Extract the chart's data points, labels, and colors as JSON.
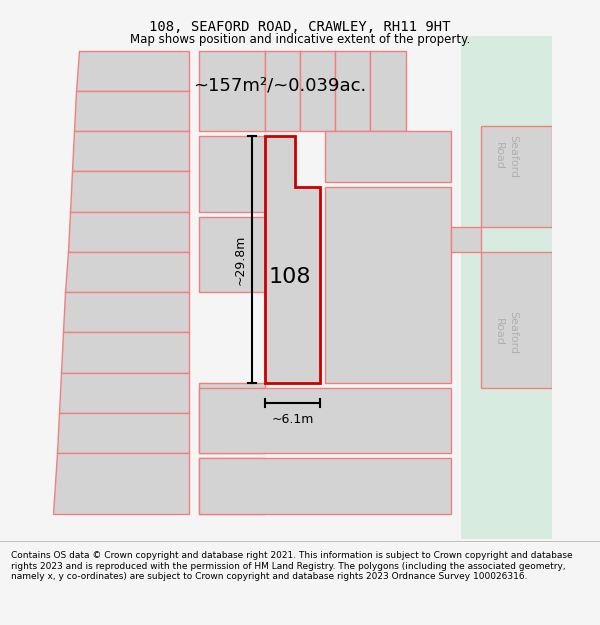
{
  "title": "108, SEAFORD ROAD, CRAWLEY, RH11 9HT",
  "subtitle": "Map shows position and indicative extent of the property.",
  "footnote": "Contains OS data © Crown copyright and database right 2021. This information is subject to Crown copyright and database rights 2023 and is reproduced with the permission of HM Land Registry. The polygons (including the associated geometry, namely x, y co-ordinates) are subject to Crown copyright and database rights 2023 Ordnance Survey 100026316.",
  "area_text": "~157m²/~0.039ac.",
  "width_text": "~6.1m",
  "height_text": "~29.8m",
  "label_108": "108",
  "bg_color": "#f5f5f5",
  "map_bg": "#ffffff",
  "road_strip_color": "#d8ebe0",
  "plot_fill": "#d3d3d3",
  "highlight_fill": "#d3d3d3",
  "plot_outline": "#f08080",
  "highlight_outline": "#cc0000",
  "dim_line_color": "#000000",
  "road_label_color": "#b0b0b0",
  "title_color": "#000000",
  "text_color": "#000000",
  "footnote_color": "#000000"
}
